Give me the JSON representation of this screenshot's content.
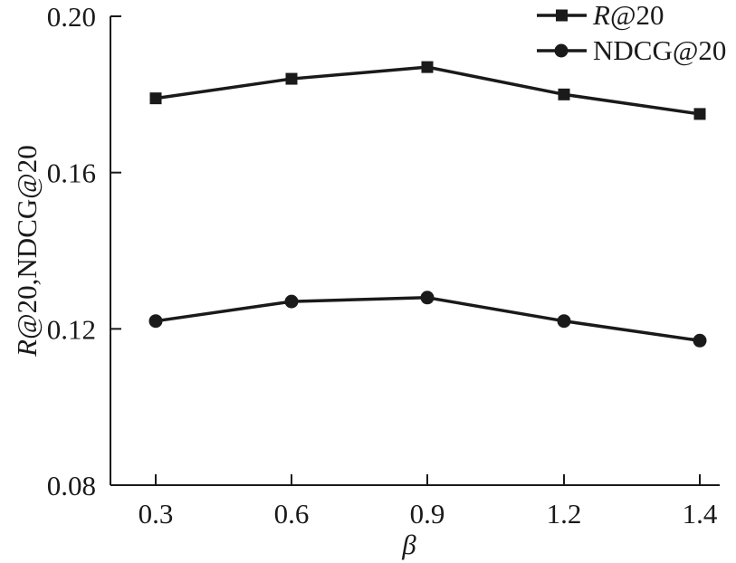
{
  "chart_data": {
    "type": "line",
    "title": "",
    "xlabel": "β",
    "ylabel": "R@20,NDCG@20",
    "x": [
      0.3,
      0.6,
      0.9,
      1.2,
      1.4
    ],
    "x_tick_labels": [
      "0.3",
      "0.6",
      "0.9",
      "1.2",
      "1.4"
    ],
    "y_ticks": [
      0.08,
      0.12,
      0.16,
      0.2
    ],
    "y_tick_labels": [
      "0.08",
      "0.12",
      "0.16",
      "0.20"
    ],
    "ylim": [
      0.08,
      0.2
    ],
    "grid": false,
    "legend_position": "top-right",
    "series": [
      {
        "name": "R@20",
        "legend_italic_prefix": "R",
        "legend_suffix": "@20",
        "marker": "square",
        "values": [
          0.179,
          0.184,
          0.187,
          0.18,
          0.175
        ]
      },
      {
        "name": "NDCG@20",
        "marker": "circle",
        "values": [
          0.122,
          0.127,
          0.128,
          0.122,
          0.117
        ]
      }
    ],
    "colors": {
      "line": "#1a1a1a",
      "background": "#ffffff"
    }
  }
}
